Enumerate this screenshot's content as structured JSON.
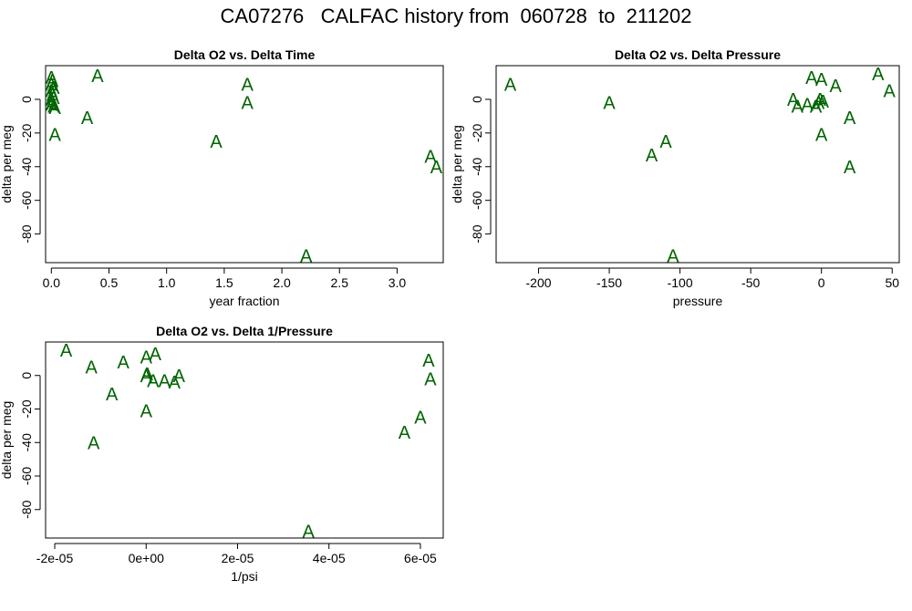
{
  "page": {
    "title": "CA07276   CALFAC history from  060728  to  211202"
  },
  "colors": {
    "marker": "#006400",
    "axis": "#000000"
  },
  "chart_data": [
    {
      "type": "scatter",
      "title": "Delta O2 vs. Delta Time",
      "xlabel": "year fraction",
      "ylabel": "delta per meg",
      "marker": "A",
      "xlim": [
        -0.05,
        3.4
      ],
      "ylim": [
        -97,
        20
      ],
      "xticks": [
        "0.0",
        "0.5",
        "1.0",
        "1.5",
        "2.0",
        "2.5",
        "3.0"
      ],
      "xtick_values": [
        0,
        0.5,
        1.0,
        1.5,
        2.0,
        2.5,
        3.0
      ],
      "yticks": [
        "0",
        "-20",
        "-40",
        "-60",
        "-80"
      ],
      "ytick_values": [
        0,
        -20,
        -40,
        -60,
        -80
      ],
      "points": [
        {
          "x": 0.0,
          "y": 13
        },
        {
          "x": 0.01,
          "y": 11
        },
        {
          "x": 0.0,
          "y": 9
        },
        {
          "x": 0.02,
          "y": 7
        },
        {
          "x": 0.0,
          "y": 5
        },
        {
          "x": 0.01,
          "y": 3
        },
        {
          "x": 0.02,
          "y": 1
        },
        {
          "x": 0.0,
          "y": 0
        },
        {
          "x": 0.01,
          "y": -2
        },
        {
          "x": 0.0,
          "y": -3
        },
        {
          "x": 0.02,
          "y": -4
        },
        {
          "x": 0.03,
          "y": -5
        },
        {
          "x": 0.03,
          "y": -21
        },
        {
          "x": 0.31,
          "y": -11
        },
        {
          "x": 0.4,
          "y": 14
        },
        {
          "x": 1.43,
          "y": -25
        },
        {
          "x": 1.7,
          "y": 9
        },
        {
          "x": 1.7,
          "y": -2
        },
        {
          "x": 2.21,
          "y": -93
        },
        {
          "x": 3.29,
          "y": -34
        },
        {
          "x": 3.34,
          "y": -40
        }
      ]
    },
    {
      "type": "scatter",
      "title": "Delta O2 vs. Delta Pressure",
      "xlabel": "pressure",
      "ylabel": "delta per meg",
      "marker": "A",
      "xlim": [
        -230,
        55
      ],
      "ylim": [
        -97,
        20
      ],
      "xticks": [
        "-200",
        "-150",
        "-100",
        "-50",
        "0",
        "50"
      ],
      "xtick_values": [
        -200,
        -150,
        -100,
        -50,
        0,
        50
      ],
      "yticks": [
        "0",
        "-20",
        "-40",
        "-60",
        "-80"
      ],
      "ytick_values": [
        0,
        -20,
        -40,
        -60,
        -80
      ],
      "points": [
        {
          "x": -220,
          "y": 9
        },
        {
          "x": -150,
          "y": -2
        },
        {
          "x": -120,
          "y": -33
        },
        {
          "x": -110,
          "y": -25
        },
        {
          "x": -105,
          "y": -93
        },
        {
          "x": -20,
          "y": 0
        },
        {
          "x": -17,
          "y": -4
        },
        {
          "x": -10,
          "y": -3
        },
        {
          "x": -7,
          "y": 13
        },
        {
          "x": -4,
          "y": -4
        },
        {
          "x": -2,
          "y": -2
        },
        {
          "x": -1,
          "y": 0
        },
        {
          "x": 0,
          "y": 12
        },
        {
          "x": 0,
          "y": -21
        },
        {
          "x": 1,
          "y": -1
        },
        {
          "x": 10,
          "y": 8
        },
        {
          "x": 20,
          "y": -11
        },
        {
          "x": 20,
          "y": -40
        },
        {
          "x": 40,
          "y": 15
        },
        {
          "x": 48,
          "y": 5
        }
      ]
    },
    {
      "type": "scatter",
      "title": "Delta O2 vs. Delta 1/Pressure",
      "xlabel": "1/psi",
      "ylabel": "delta per meg",
      "marker": "A",
      "xlim": [
        -2.2e-05,
        6.5e-05
      ],
      "ylim": [
        -97,
        20
      ],
      "xticks": [
        "-2e-05",
        "0e+00",
        "2e-05",
        "4e-05",
        "6e-05"
      ],
      "xtick_values": [
        -2e-05,
        0,
        2e-05,
        4e-05,
        6e-05
      ],
      "yticks": [
        "0",
        "-20",
        "-40",
        "-60",
        "-80"
      ],
      "ytick_values": [
        0,
        -20,
        -40,
        -60,
        -80
      ],
      "points": [
        {
          "x": -1.75e-05,
          "y": 15
        },
        {
          "x": -1.2e-05,
          "y": 5
        },
        {
          "x": -1.15e-05,
          "y": -40
        },
        {
          "x": -7.5e-06,
          "y": -11
        },
        {
          "x": -5e-06,
          "y": 8
        },
        {
          "x": 0.0,
          "y": 11
        },
        {
          "x": 0.0,
          "y": 0
        },
        {
          "x": 2e-07,
          "y": 1
        },
        {
          "x": 0.0,
          "y": -21
        },
        {
          "x": 1.5e-06,
          "y": -3
        },
        {
          "x": 2e-06,
          "y": 13
        },
        {
          "x": 4e-06,
          "y": -3
        },
        {
          "x": 6.2e-06,
          "y": -4
        },
        {
          "x": 7.2e-06,
          "y": 0
        },
        {
          "x": 3.55e-05,
          "y": -93
        },
        {
          "x": 5.65e-05,
          "y": -34
        },
        {
          "x": 6e-05,
          "y": -25
        },
        {
          "x": 6.18e-05,
          "y": 9
        },
        {
          "x": 6.22e-05,
          "y": -2
        }
      ]
    }
  ]
}
